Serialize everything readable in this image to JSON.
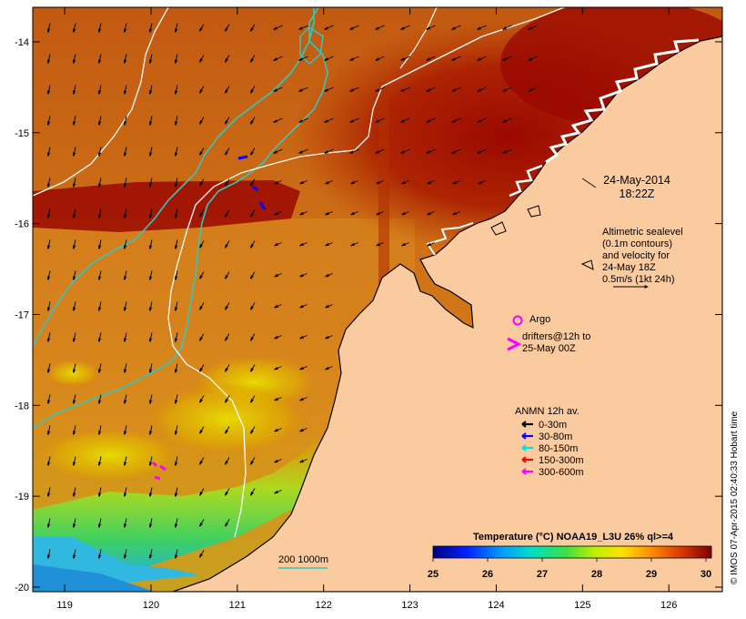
{
  "map": {
    "lon_ticks": [
      "119",
      "120",
      "121",
      "122",
      "123",
      "124",
      "125",
      "126"
    ],
    "lat_ticks": [
      "-14",
      "-15",
      "-16",
      "-17",
      "-18",
      "-19",
      "-20"
    ],
    "lon_range": [
      118.63,
      126.62
    ],
    "lat_range": [
      -20.05,
      -13.62
    ],
    "colors": {
      "land": "#fbcba0",
      "sea_warm": "#d06010",
      "sea_hot": "#990000",
      "sea_cool": "#22b0f0",
      "contour_white": "#ffffff",
      "isobath_cyan": "#30c8c0",
      "argo": "#ff00ff"
    }
  },
  "annotations": {
    "date_line1": "24-May-2014",
    "date_line2": "18:22Z",
    "altimetry_line1": "Altimetric sealevel",
    "altimetry_line2": "(0.1m contours)",
    "altimetry_line3": "and velocity for",
    "altimetry_line4": "24-May 18Z",
    "altimetry_line5": "0.5m/s (1kt 24h)",
    "argo_label": "Argo",
    "drifters_line1": "drifters@12h to",
    "drifters_line2": "25-May 00Z",
    "anmn_title": "ANMN 12h av.",
    "depth_bathy_label": "200  1000m",
    "credit": "© IMOS 07-Apr-2015 02:40:33 Hobart time"
  },
  "anmn_legend": [
    {
      "label": "0-30m",
      "color": "#000000"
    },
    {
      "label": "30-80m",
      "color": "#0000ff"
    },
    {
      "label": "80-150m",
      "color": "#00e0e0"
    },
    {
      "label": "150-300m",
      "color": "#ff0000"
    },
    {
      "label": "300-600m",
      "color": "#ff00ff"
    }
  ],
  "colorbar": {
    "title": "Temperature (°C) NOAA19_L3U 26% ql>=4",
    "ticks": [
      "25",
      "26",
      "27",
      "28",
      "29",
      "30"
    ],
    "range": [
      25,
      30.1
    ]
  }
}
